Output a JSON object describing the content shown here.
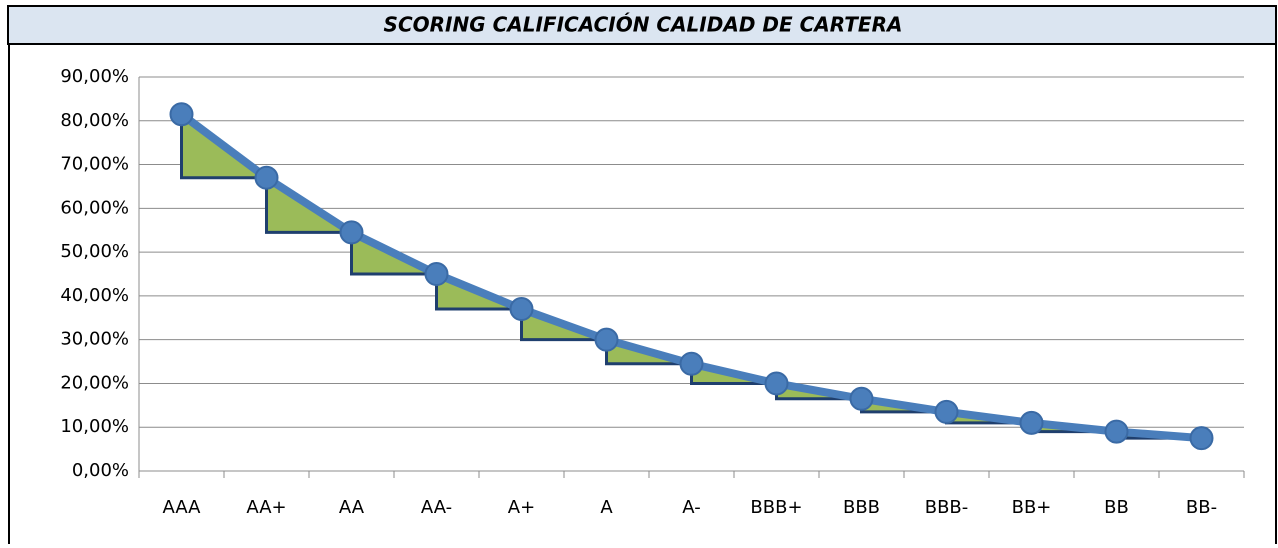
{
  "chart_data": {
    "type": "line",
    "title": "SCORING CALIFICACIÓN CALIDAD DE CARTERA",
    "categories": [
      "AAA",
      "AA+",
      "AA",
      "AA-",
      "A+",
      "A",
      "A-",
      "BBB+",
      "BBB",
      "BBB-",
      "BB+",
      "BB",
      "BB-"
    ],
    "series": [
      {
        "color": "#4a7ebb",
        "values": [
          81.5,
          67,
          54.5,
          45,
          37,
          30,
          24.5,
          20,
          16.5,
          13.5,
          11,
          9,
          7.5
        ]
      }
    ],
    "fill_color": "#9bbb59",
    "ylim": [
      0,
      90
    ],
    "yticks": [
      {
        "value": 0,
        "label": "0,00%"
      },
      {
        "value": 10,
        "label": "10,00%"
      },
      {
        "value": 20,
        "label": "20,00%"
      },
      {
        "value": 30,
        "label": "30,00%"
      },
      {
        "value": 40,
        "label": "40,00%"
      },
      {
        "value": 50,
        "label": "50,00%"
      },
      {
        "value": 60,
        "label": "60,00%"
      },
      {
        "value": 70,
        "label": "70,00%"
      },
      {
        "value": 80,
        "label": "80,00%"
      },
      {
        "value": 90,
        "label": "90,00%"
      }
    ],
    "grid": true
  }
}
